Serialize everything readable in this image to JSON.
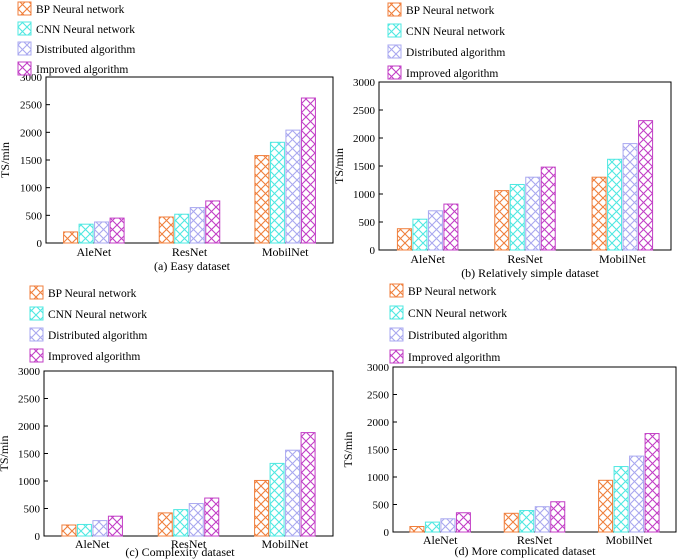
{
  "figure": {
    "description": "Four grouped bar charts comparing training time"
  },
  "colors": {
    "BP Neural network": "#f07f3c",
    "CNN Neural network": "#4ee8e2",
    "Distributed algorithm": "#a9a8f0",
    "Improved algorithm": "#c23ec6"
  },
  "chart_data": [
    {
      "type": "bar",
      "title": "(a) Easy dataset",
      "ylabel": "TS/min",
      "xlabel": "",
      "categories": [
        "AleNet",
        "ResNet",
        "MobilNet"
      ],
      "ylim": [
        0,
        3000
      ],
      "yticks": [
        0,
        500,
        1000,
        1500,
        2000,
        2500,
        3000
      ],
      "legend": "top-left",
      "series": [
        {
          "name": "BP Neural network",
          "values": [
            200,
            470,
            1580
          ]
        },
        {
          "name": "CNN Neural network",
          "values": [
            340,
            520,
            1820
          ]
        },
        {
          "name": "Distributed algorithm",
          "values": [
            380,
            640,
            2040
          ]
        },
        {
          "name": "Improved algorithm",
          "values": [
            450,
            760,
            2620
          ]
        }
      ]
    },
    {
      "type": "bar",
      "title": "(b) Relatively simple dataset",
      "ylabel": "TS/min",
      "xlabel": "",
      "categories": [
        "AleNet",
        "ResNet",
        "MobilNet"
      ],
      "ylim": [
        0,
        3000
      ],
      "yticks": [
        0,
        500,
        1000,
        1500,
        2000,
        2500,
        3000
      ],
      "legend": "top-left",
      "series": [
        {
          "name": "BP Neural network",
          "values": [
            380,
            1060,
            1300
          ]
        },
        {
          "name": "CNN Neural network",
          "values": [
            550,
            1170,
            1620
          ]
        },
        {
          "name": "Distributed algorithm",
          "values": [
            700,
            1300,
            1900
          ]
        },
        {
          "name": "Improved algorithm",
          "values": [
            820,
            1480,
            2310
          ]
        }
      ]
    },
    {
      "type": "bar",
      "title": "(c) Complexity dataset",
      "ylabel": "TS/min",
      "xlabel": "",
      "categories": [
        "AleNet",
        "ResNet",
        "MobilNet"
      ],
      "ylim": [
        0,
        3000
      ],
      "yticks": [
        0,
        500,
        1000,
        1500,
        2000,
        2500,
        3000
      ],
      "legend": "top-left",
      "series": [
        {
          "name": "BP Neural network",
          "values": [
            200,
            420,
            1010
          ]
        },
        {
          "name": "CNN Neural network",
          "values": [
            210,
            480,
            1320
          ]
        },
        {
          "name": "Distributed algorithm",
          "values": [
            280,
            590,
            1560
          ]
        },
        {
          "name": "Improved algorithm",
          "values": [
            360,
            690,
            1880
          ]
        }
      ]
    },
    {
      "type": "bar",
      "title": "(d) More complicated dataset",
      "ylabel": "TS/min",
      "xlabel": "",
      "categories": [
        "AleNet",
        "ResNet",
        "MobilNet"
      ],
      "ylim": [
        0,
        3000
      ],
      "yticks": [
        0,
        500,
        1000,
        1500,
        2000,
        2500,
        3000
      ],
      "legend": "top-left",
      "series": [
        {
          "name": "BP Neural network",
          "values": [
            100,
            340,
            940
          ]
        },
        {
          "name": "CNN Neural network",
          "values": [
            180,
            390,
            1190
          ]
        },
        {
          "name": "Distributed algorithm",
          "values": [
            240,
            460,
            1380
          ]
        },
        {
          "name": "Improved algorithm",
          "values": [
            350,
            550,
            1790
          ]
        }
      ]
    }
  ]
}
